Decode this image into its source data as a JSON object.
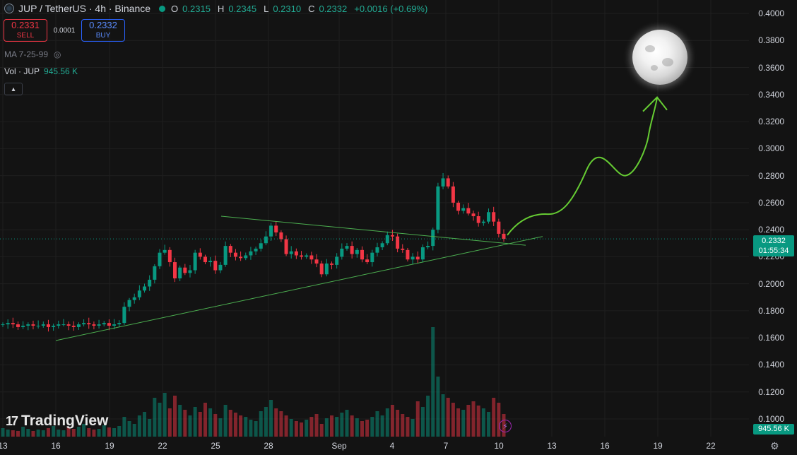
{
  "header": {
    "symbol": "JUP / TetherUS · 4h · Binance",
    "o_label": "O",
    "o_value": "0.2315",
    "h_label": "H",
    "h_value": "0.2345",
    "l_label": "L",
    "l_value": "0.2310",
    "c_label": "C",
    "c_value": "0.2332",
    "change": "+0.0016 (+0.69%)"
  },
  "trade": {
    "sell_price": "0.2331",
    "sell_label": "SELL",
    "spread": "0.0001",
    "buy_price": "0.2332",
    "buy_label": "BUY"
  },
  "indicators": {
    "ma_label": "MA 7-25-99",
    "vol_label": "Vol · JUP",
    "vol_value": "945.56 K"
  },
  "price_tag": {
    "price": "0.2332",
    "countdown": "01:55:34"
  },
  "volume_tag": "945.56 K",
  "brand": "TradingView",
  "colors": {
    "up": "#089981",
    "down": "#f23645",
    "trendline": "#4caf50",
    "projection": "#66cc33",
    "background": "#131313"
  },
  "chart_data": {
    "type": "candlestick",
    "y_ticks": [
      "0.4000",
      "0.3800",
      "0.3600",
      "0.3400",
      "0.3200",
      "0.3000",
      "0.2800",
      "0.2600",
      "0.2400",
      "0.2200",
      "0.2000",
      "0.1800",
      "0.1600",
      "0.1400",
      "0.1200",
      "0.1000"
    ],
    "x_ticks": [
      "13",
      "16",
      "19",
      "22",
      "25",
      "28",
      "Sep",
      "4",
      "7",
      "10",
      "13",
      "16",
      "19",
      "22"
    ],
    "ylim": [
      0.1,
      0.4
    ],
    "last_price": 0.2332,
    "grid": true,
    "candles_close_path": [
      0.17,
      0.171,
      0.17,
      0.168,
      0.169,
      0.17,
      0.169,
      0.169,
      0.17,
      0.168,
      0.169,
      0.17,
      0.17,
      0.169,
      0.168,
      0.17,
      0.171,
      0.17,
      0.169,
      0.17,
      0.171,
      0.169,
      0.17,
      0.171,
      0.183,
      0.188,
      0.19,
      0.195,
      0.198,
      0.203,
      0.213,
      0.223,
      0.225,
      0.216,
      0.204,
      0.212,
      0.208,
      0.21,
      0.223,
      0.22,
      0.216,
      0.217,
      0.21,
      0.214,
      0.228,
      0.223,
      0.22,
      0.219,
      0.221,
      0.224,
      0.226,
      0.23,
      0.235,
      0.243,
      0.238,
      0.233,
      0.222,
      0.224,
      0.221,
      0.22,
      0.221,
      0.218,
      0.215,
      0.207,
      0.215,
      0.214,
      0.22,
      0.226,
      0.228,
      0.222,
      0.225,
      0.218,
      0.216,
      0.223,
      0.227,
      0.23,
      0.236,
      0.235,
      0.226,
      0.225,
      0.218,
      0.22,
      0.218,
      0.227,
      0.228,
      0.24,
      0.272,
      0.278,
      0.272,
      0.26,
      0.254,
      0.256,
      0.252,
      0.25,
      0.245,
      0.246,
      0.253,
      0.246,
      0.237,
      0.2332
    ],
    "volume_path": [
      12,
      10,
      9,
      8,
      14,
      11,
      8,
      10,
      9,
      12,
      15,
      10,
      9,
      13,
      11,
      14,
      18,
      12,
      10,
      11,
      16,
      13,
      12,
      15,
      28,
      22,
      18,
      30,
      35,
      25,
      55,
      48,
      62,
      40,
      58,
      45,
      38,
      30,
      42,
      35,
      48,
      40,
      32,
      26,
      45,
      38,
      34,
      30,
      28,
      24,
      22,
      36,
      42,
      52,
      40,
      36,
      30,
      25,
      22,
      20,
      24,
      28,
      32,
      18,
      26,
      30,
      28,
      34,
      38,
      30,
      26,
      22,
      24,
      28,
      36,
      30,
      40,
      45,
      38,
      32,
      28,
      25,
      50,
      42,
      58,
      155,
      85,
      60,
      55,
      48,
      40,
      38,
      45,
      50,
      44,
      40,
      35,
      55,
      48,
      32
    ],
    "support_line": {
      "from": [
        "16",
        0.158
      ],
      "to": [
        "13",
        0.235
      ]
    },
    "resistance_line": {
      "from": [
        "25",
        0.25
      ],
      "to": [
        "10",
        0.2285
      ]
    },
    "projection_target": 0.338
  }
}
